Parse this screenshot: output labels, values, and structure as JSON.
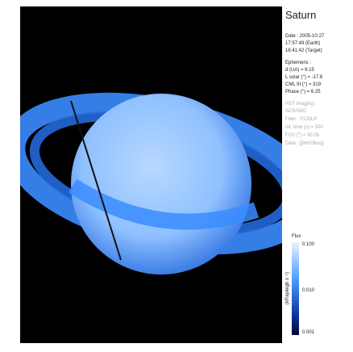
{
  "title": "Saturn",
  "date": [
    "Date : 2005-10-27",
    "17:57:49 (Earth)",
    "16:41:42 (Target)"
  ],
  "ephemeris": {
    "heading": "Ephemeris :",
    "lines": [
      "d (UA) = 9.15",
      "L solar (°) = -17.6",
      "CML III (°) = 319",
      "Phase (°) = 6.25"
    ]
  },
  "imaging": {
    "heading": "HST Imaging :",
    "lines": [
      "ACS/SBC",
      "Filter : F125LP",
      "Int. time (s) = 300",
      "FOV (\") = 30.06",
      "Data : [j9rb03kuq]"
    ]
  },
  "colorbar": {
    "title": "Flux",
    "unit": "(kRayleigh s⁻¹)",
    "ticks": [
      "0.100",
      "0.010",
      "0.001"
    ]
  }
}
